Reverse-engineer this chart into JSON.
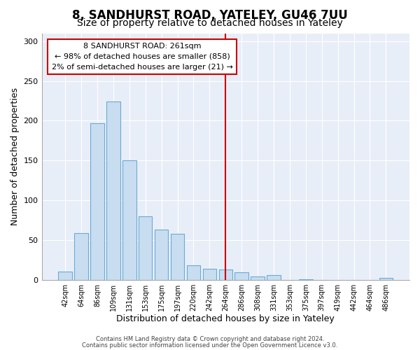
{
  "title": "8, SANDHURST ROAD, YATELEY, GU46 7UU",
  "subtitle": "Size of property relative to detached houses in Yateley",
  "xlabel": "Distribution of detached houses by size in Yateley",
  "ylabel": "Number of detached properties",
  "bar_labels": [
    "42sqm",
    "64sqm",
    "86sqm",
    "109sqm",
    "131sqm",
    "153sqm",
    "175sqm",
    "197sqm",
    "220sqm",
    "242sqm",
    "264sqm",
    "286sqm",
    "308sqm",
    "331sqm",
    "353sqm",
    "375sqm",
    "397sqm",
    "419sqm",
    "442sqm",
    "464sqm",
    "486sqm"
  ],
  "bar_values": [
    10,
    59,
    197,
    224,
    150,
    80,
    63,
    58,
    18,
    14,
    13,
    9,
    4,
    6,
    0,
    1,
    0,
    0,
    0,
    0,
    2
  ],
  "bar_color": "#c8ddf0",
  "bar_edge_color": "#6aaad4",
  "vline_x_idx": 10,
  "vline_color": "#cc0000",
  "ylim": [
    0,
    310
  ],
  "yticks": [
    0,
    50,
    100,
    150,
    200,
    250,
    300
  ],
  "annotation_title": "8 SANDHURST ROAD: 261sqm",
  "annotation_line1": "← 98% of detached houses are smaller (858)",
  "annotation_line2": "2% of semi-detached houses are larger (21) →",
  "annotation_box_color": "#ffffff",
  "annotation_box_edge": "#cc0000",
  "footer1": "Contains HM Land Registry data © Crown copyright and database right 2024.",
  "footer2": "Contains public sector information licensed under the Open Government Licence v3.0.",
  "background_color": "#ffffff",
  "plot_bg_color": "#e8eef8",
  "grid_color": "#ffffff",
  "title_fontsize": 12,
  "subtitle_fontsize": 10,
  "tick_fontsize": 7,
  "ylabel_fontsize": 9,
  "xlabel_fontsize": 9,
  "annotation_fontsize": 8,
  "footer_fontsize": 6
}
